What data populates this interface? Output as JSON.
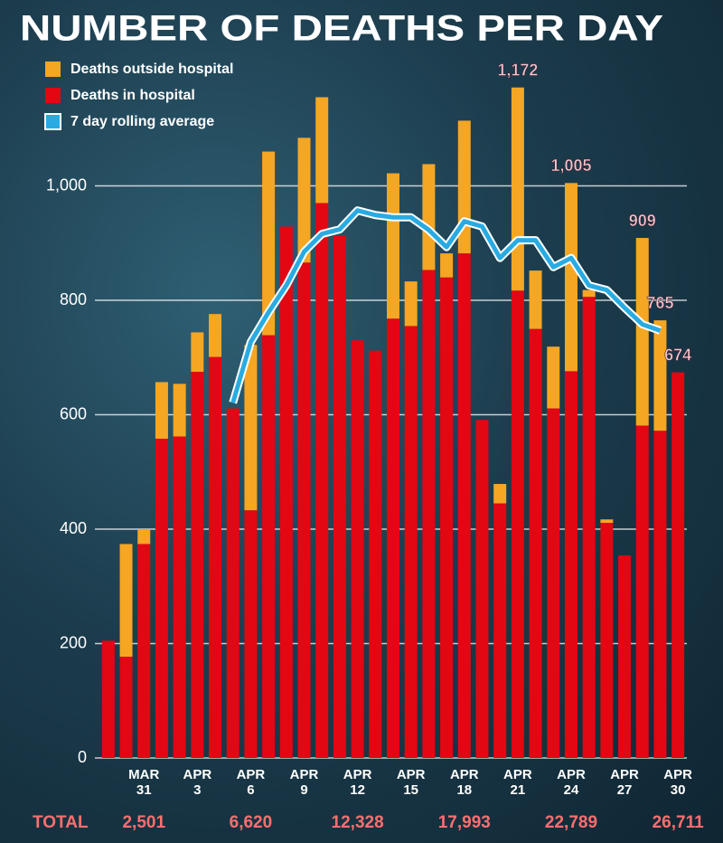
{
  "chart_data": {
    "type": "bar",
    "stacked": true,
    "title": "NUMBER OF DEATHS PER DAY",
    "categories": [
      null,
      null,
      "MAR 31",
      null,
      null,
      "APR 3",
      null,
      null,
      "APR 6",
      null,
      null,
      "APR 9",
      null,
      null,
      "APR 12",
      null,
      null,
      "APR 15",
      null,
      null,
      "APR 18",
      null,
      null,
      "APR 21",
      null,
      null,
      "APR 24",
      null,
      null,
      "APR 27",
      null,
      null,
      "APR 30"
    ],
    "series": [
      {
        "name": "Deaths in hospital",
        "color": "#e30613",
        "values": [
          205,
          177,
          374,
          558,
          562,
          675,
          701,
          611,
          433,
          739,
          929,
          866,
          970,
          913,
          730,
          712,
          768,
          755,
          853,
          840,
          882,
          591,
          445,
          817,
          750,
          611,
          676,
          806,
          411,
          354,
          581,
          572,
          674
        ]
      },
      {
        "name": "Deaths outside hospital",
        "color": "#f5a623",
        "values": [
          0,
          197,
          26,
          99,
          92,
          69,
          75,
          0,
          289,
          321,
          0,
          218,
          185,
          0,
          0,
          0,
          254,
          78,
          185,
          42,
          232,
          0,
          34,
          355,
          102,
          108,
          329,
          12,
          6,
          0,
          328,
          193,
          0
        ]
      },
      {
        "name": "7 day rolling average",
        "color": "#29abe2",
        "type": "line",
        "values": [
          null,
          null,
          null,
          null,
          null,
          null,
          null,
          621,
          727,
          779,
          826,
          885,
          916,
          924,
          957,
          949,
          945,
          945,
          923,
          893,
          938,
          929,
          874,
          905,
          905,
          858,
          874,
          826,
          818,
          787,
          758,
          747,
          null
        ]
      }
    ],
    "annotations": [
      {
        "index": 23,
        "value": 1172,
        "label": "1,172"
      },
      {
        "index": 26,
        "value": 1005,
        "label": "1,005"
      },
      {
        "index": 30,
        "value": 909,
        "label": "909"
      },
      {
        "index": 31,
        "value": 765,
        "label": "765"
      },
      {
        "index": 32,
        "value": 674,
        "label": "674"
      }
    ],
    "totals": {
      "label": "TOTAL",
      "categories": [
        "MAR 31",
        "APR 6",
        "APR 12",
        "APR 18",
        "APR 24",
        "APR 30"
      ],
      "values": [
        2501,
        6620,
        12328,
        17993,
        22789,
        26711
      ],
      "value_labels": [
        "2,501",
        "6,620",
        "12,328",
        "17,993",
        "22,789",
        "26,711"
      ]
    },
    "ylim": [
      0,
      1200
    ],
    "yticks": [
      0,
      200,
      400,
      600,
      800,
      {
        "value": 1000,
        "label": "1,000"
      }
    ],
    "grid": true,
    "legend": "top-left"
  }
}
